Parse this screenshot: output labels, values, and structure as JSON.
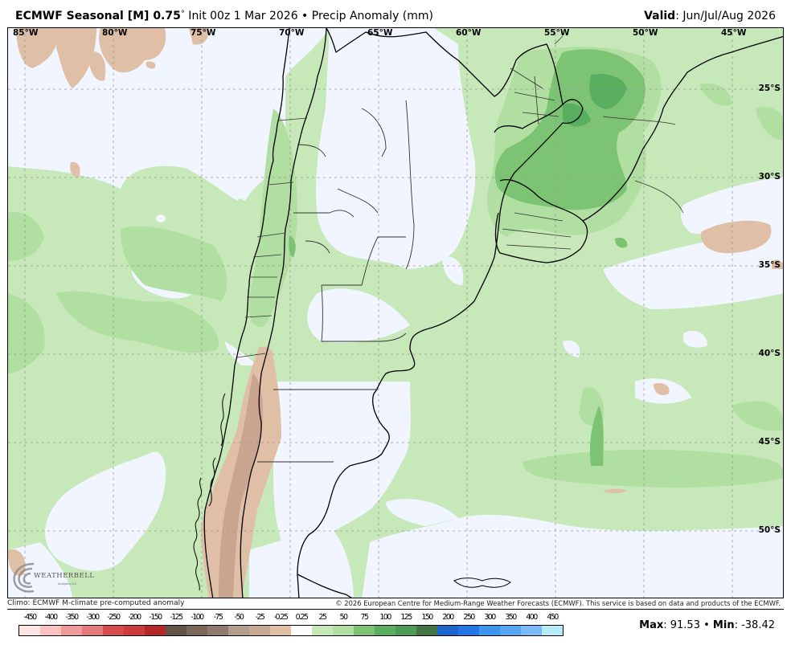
{
  "header": {
    "title_bold": "ECMWF Seasonal [M] 0.75",
    "title_degree": "°",
    "title_rest": " Init 00z 1 Mar 2026 • Precip Anomaly (mm)",
    "valid_label": "Valid",
    "valid_value": ": Jun/Jul/Aug 2026"
  },
  "map": {
    "projection": "lat-lon",
    "extent": {
      "lon_west": -85.5,
      "lon_east": -44,
      "lat_north": -21.2,
      "lat_south": -53.5
    },
    "lon_labels": [
      "85°W",
      "80°W",
      "75°W",
      "70°W",
      "65°W",
      "60°W",
      "55°W",
      "50°W",
      "45°W"
    ],
    "lat_labels": [
      "25°S",
      "30°S",
      "35°S",
      "40°S",
      "45°S",
      "50°S"
    ],
    "colors": {
      "ocean_neutral": "#f0f5ff",
      "green_1": "#c7e8b8",
      "green_2": "#b1dea1",
      "green_3": "#7cc474",
      "green_4": "#5aae60",
      "tan_1": "#dfbfa6",
      "tan_2": "#c9a48e",
      "border": "#000000",
      "grid": "#999999"
    },
    "logo": {
      "name": "WEATHERBELL",
      "sub": "Analytics LLC"
    }
  },
  "footer": {
    "left_note": "Climo: ECMWF M-climate pre-computed anomaly",
    "right_note": "© 2026 European Centre for Medium-Range Weather Forecasts (ECMWF). This service is based on data and products of the ECMWF."
  },
  "colorbar": {
    "labels": [
      "-450",
      "-400",
      "-350",
      "-300",
      "-250",
      "-200",
      "-150",
      "-125",
      "-100",
      "-75",
      "-50",
      "-25",
      "-0.25",
      "0.25",
      "25",
      "50",
      "75",
      "100",
      "125",
      "150",
      "200",
      "250",
      "300",
      "350",
      "400",
      "450"
    ],
    "colors": [
      "#fde4e4",
      "#fcc1c1",
      "#f19a9a",
      "#e47a7a",
      "#d74d4d",
      "#cd3c3c",
      "#b32727",
      "#635346",
      "#7c6859",
      "#8f7b6d",
      "#b39c8b",
      "#c8a994",
      "#dfbfa6",
      "#ffffff",
      "#c7e8b8",
      "#b1dea1",
      "#7cc474",
      "#5aae60",
      "#4e9b58",
      "#447543",
      "#1c66d0",
      "#2575e8",
      "#3c96f0",
      "#54a5f3",
      "#7bbaf8",
      "#b6ecf9"
    ]
  },
  "stats": {
    "max_label": "Max",
    "max_value": ": 91.53 • ",
    "min_label": "Min",
    "min_value": ": -38.42"
  }
}
